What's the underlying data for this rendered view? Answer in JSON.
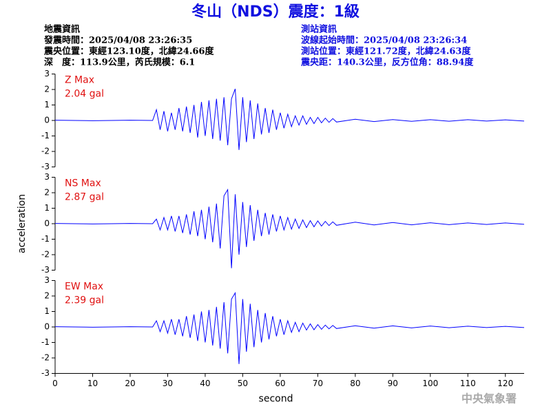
{
  "header": {
    "title": "冬山（NDS）震度：1級",
    "left_info": [
      "地震資訊",
      "發震時間：2025/04/08 23:26:35",
      "震央位置：東經123.10度，北緯24.66度",
      "深　度：113.9公里，芮氏規模：6.1"
    ],
    "right_info": [
      "測站資訊",
      "波線起始時間：2025/04/08 23:26:34",
      "測站位置：東經121.72度，北緯24.63度",
      "震央距：140.3公里，反方位角：88.94度"
    ]
  },
  "footer": "中央氣象署",
  "chart_data": [
    {
      "type": "line",
      "annotation": [
        "Z Max",
        "2.04 gal"
      ],
      "x": [
        0,
        10,
        20,
        26,
        27,
        28,
        29,
        30,
        31,
        32,
        33,
        34,
        35,
        36,
        37,
        38,
        39,
        40,
        41,
        42,
        43,
        44,
        45,
        46,
        47,
        48,
        49,
        50,
        51,
        52,
        53,
        54,
        55,
        56,
        57,
        58,
        59,
        60,
        61,
        62,
        63,
        64,
        65,
        66,
        67,
        68,
        69,
        70,
        71,
        72,
        73,
        74,
        75,
        80,
        85,
        90,
        95,
        100,
        105,
        110,
        115,
        120,
        125
      ],
      "series": [
        {
          "color": "#0000ff",
          "values": [
            0.02,
            -0.02,
            0.02,
            0,
            0.7,
            -0.6,
            0.6,
            -0.7,
            0.5,
            -0.6,
            0.8,
            -0.7,
            0.9,
            -0.8,
            1.0,
            -1.1,
            1.2,
            -1.0,
            1.3,
            -1.2,
            1.4,
            -1.3,
            1.5,
            -1.6,
            1.4,
            2.04,
            -1.9,
            1.5,
            -1.4,
            1.3,
            -1.2,
            1.1,
            -0.9,
            0.8,
            -0.8,
            0.7,
            -0.6,
            0.5,
            -0.5,
            0.4,
            -0.4,
            0.3,
            -0.3,
            0.3,
            -0.25,
            0.2,
            -0.2,
            0.2,
            -0.15,
            0.15,
            -0.12,
            0.12,
            -0.1,
            0.08,
            -0.07,
            0.06,
            -0.06,
            0.05,
            -0.05,
            0.05,
            -0.04,
            0.04,
            -0.04
          ]
        }
      ],
      "xlim": [
        0,
        125
      ],
      "ylim": [
        -3,
        3
      ],
      "yticks": [
        -3,
        -2,
        -1,
        0,
        1,
        2,
        3
      ]
    },
    {
      "type": "line",
      "annotation": [
        "NS Max",
        "2.87 gal"
      ],
      "ylabel": "acceleration",
      "x": [
        0,
        10,
        20,
        26,
        27,
        28,
        29,
        30,
        31,
        32,
        33,
        34,
        35,
        36,
        37,
        38,
        39,
        40,
        41,
        42,
        43,
        44,
        45,
        46,
        47,
        48,
        49,
        50,
        51,
        52,
        53,
        54,
        55,
        56,
        57,
        58,
        59,
        60,
        61,
        62,
        63,
        64,
        65,
        66,
        67,
        68,
        69,
        70,
        71,
        72,
        73,
        74,
        75,
        80,
        85,
        90,
        95,
        100,
        105,
        110,
        115,
        120,
        125
      ],
      "series": [
        {
          "color": "#0000ff",
          "values": [
            0.02,
            -0.02,
            0.02,
            0,
            0.3,
            -0.4,
            0.4,
            -0.4,
            0.5,
            -0.5,
            0.5,
            -0.6,
            0.6,
            -0.7,
            0.8,
            -0.8,
            0.9,
            -1.0,
            1.1,
            -1.2,
            1.3,
            -1.6,
            1.8,
            2.2,
            -2.87,
            1.9,
            -2.0,
            1.4,
            -1.5,
            1.2,
            -1.1,
            0.9,
            -0.8,
            0.7,
            -0.7,
            0.6,
            -0.5,
            0.5,
            -0.4,
            0.4,
            -0.35,
            0.3,
            -0.3,
            0.25,
            -0.25,
            0.2,
            -0.2,
            0.18,
            -0.15,
            0.15,
            -0.12,
            0.12,
            -0.1,
            0.1,
            -0.08,
            0.08,
            -0.07,
            0.06,
            -0.06,
            0.05,
            -0.05,
            0.05,
            -0.04
          ]
        }
      ],
      "xlim": [
        0,
        125
      ],
      "ylim": [
        -3,
        3
      ],
      "yticks": [
        -3,
        -2,
        -1,
        0,
        1,
        2,
        3
      ]
    },
    {
      "type": "line",
      "annotation": [
        "EW Max",
        "2.39 gal"
      ],
      "xlabel": "second",
      "x": [
        0,
        10,
        20,
        26,
        27,
        28,
        29,
        30,
        31,
        32,
        33,
        34,
        35,
        36,
        37,
        38,
        39,
        40,
        41,
        42,
        43,
        44,
        45,
        46,
        47,
        48,
        49,
        50,
        51,
        52,
        53,
        54,
        55,
        56,
        57,
        58,
        59,
        60,
        61,
        62,
        63,
        64,
        65,
        66,
        67,
        68,
        69,
        70,
        71,
        72,
        73,
        74,
        75,
        80,
        85,
        90,
        95,
        100,
        105,
        110,
        115,
        120,
        125
      ],
      "series": [
        {
          "color": "#0000ff",
          "values": [
            0.02,
            -0.02,
            0.02,
            0,
            0.4,
            -0.3,
            0.4,
            -0.4,
            0.5,
            -0.5,
            0.5,
            -0.6,
            0.7,
            -0.7,
            0.8,
            -0.9,
            1.0,
            -1.0,
            1.1,
            -1.2,
            1.3,
            -1.4,
            1.6,
            -1.7,
            1.8,
            2.2,
            -2.39,
            1.8,
            -1.6,
            1.5,
            -1.3,
            1.1,
            -1.0,
            0.9,
            -0.8,
            0.7,
            -0.6,
            0.5,
            -0.5,
            0.4,
            -0.35,
            0.3,
            -0.3,
            0.25,
            -0.2,
            0.2,
            -0.18,
            0.15,
            -0.15,
            0.12,
            -0.12,
            0.1,
            -0.1,
            0.08,
            -0.08,
            0.07,
            -0.06,
            0.06,
            -0.05,
            0.05,
            -0.04,
            0.04,
            -0.04
          ]
        }
      ],
      "xlim": [
        0,
        125
      ],
      "ylim": [
        -3,
        3
      ],
      "yticks": [
        -3,
        -2,
        -1,
        0,
        1,
        2,
        3
      ],
      "xticks": [
        0,
        10,
        20,
        30,
        40,
        50,
        60,
        70,
        80,
        90,
        100,
        110,
        120
      ]
    }
  ]
}
